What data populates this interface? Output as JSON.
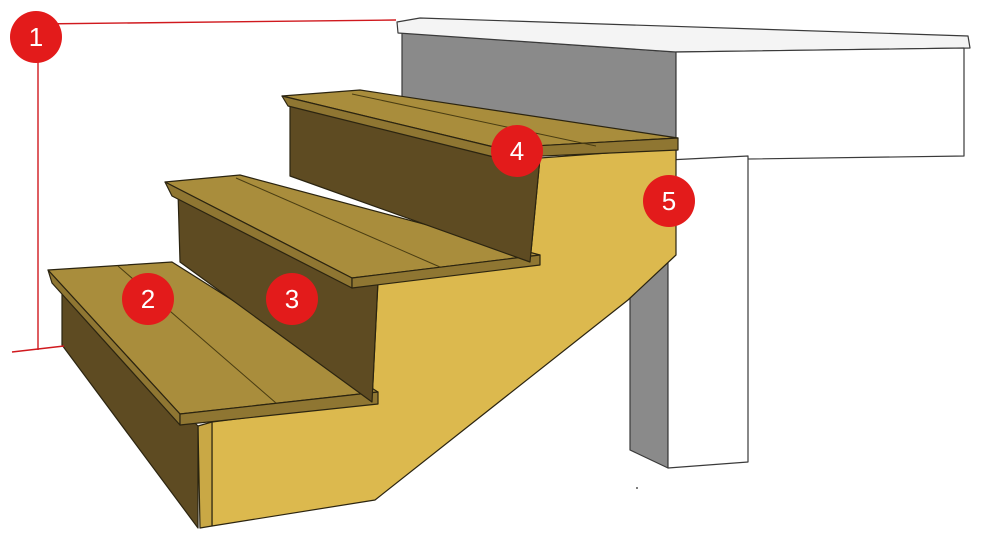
{
  "callouts": [
    {
      "label": "1"
    },
    {
      "label": "2"
    },
    {
      "label": "3"
    },
    {
      "label": "4"
    },
    {
      "label": "5"
    }
  ],
  "colors": {
    "callout_fill": "#e31b1b",
    "callout_text": "#ffffff",
    "tread_top": "#a98d3c",
    "tread_nose": "#8f7632",
    "riser": "#5e4b22",
    "stringer": "#dcb94e",
    "stringer_edge_side": "#c9a845",
    "deck_wall": "#8a8a8a",
    "deck_face": "#ffffff",
    "measure_line": "#d0191e"
  }
}
